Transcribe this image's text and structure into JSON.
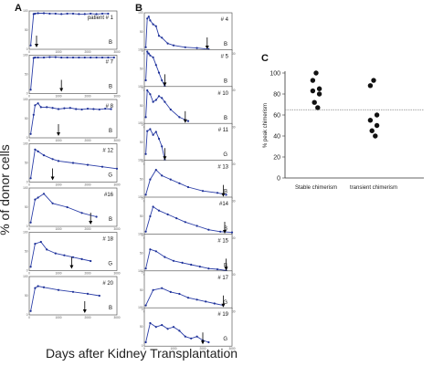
{
  "figure": {
    "panel_labels": [
      "A",
      "B",
      "C"
    ],
    "ylabel": "% of donor cells",
    "xlabel": "Days after Kidney Transplantation"
  },
  "chart_data": [
    {
      "type": "line",
      "panel": "A",
      "subplots": [
        {
          "id": "patient # 1",
          "tag": "B",
          "x": [
            50,
            150,
            200,
            300,
            500,
            700,
            900,
            1100,
            1300,
            1500,
            1700,
            1900,
            2100,
            2300,
            2500,
            2700
          ],
          "y": [
            10,
            92,
            93,
            94,
            94,
            93,
            93,
            92,
            93,
            93,
            92,
            92,
            93,
            92,
            93,
            93
          ],
          "arrow_x": 250
        },
        {
          "id": "# 7",
          "tag": "B",
          "x": [
            50,
            150,
            200,
            300,
            500,
            700,
            900,
            1100,
            1300,
            1500,
            1700,
            1900,
            2100,
            2300,
            2500,
            2700,
            2900
          ],
          "y": [
            10,
            93,
            94,
            94,
            94,
            95,
            95,
            94,
            94,
            94,
            94,
            94,
            94,
            94,
            94,
            94,
            94
          ],
          "arrow_x": 1100
        },
        {
          "id": "# 8",
          "tag": "B",
          "x": [
            50,
            150,
            200,
            300,
            400,
            600,
            800,
            1000,
            1200,
            1400,
            1600,
            1800,
            2000,
            2200,
            2400,
            2600,
            2800
          ],
          "y": [
            10,
            60,
            85,
            90,
            80,
            80,
            78,
            75,
            77,
            78,
            75,
            74,
            76,
            75,
            74,
            76,
            75
          ],
          "arrow_x": 1000
        },
        {
          "id": "# 12",
          "tag": "G",
          "x": [
            50,
            200,
            300,
            500,
            800,
            1000,
            1500,
            2000,
            2500,
            3000
          ],
          "y": [
            10,
            85,
            80,
            70,
            60,
            55,
            50,
            45,
            40,
            35
          ],
          "arrow_x": 800
        },
        {
          "id": "#16",
          "tag": "B",
          "x": [
            50,
            200,
            300,
            500,
            800,
            1300,
            1800,
            2300
          ],
          "y": [
            10,
            70,
            75,
            85,
            60,
            50,
            35,
            25
          ],
          "arrow_x": 2100
        },
        {
          "id": "# 18",
          "tag": "G",
          "x": [
            50,
            200,
            400,
            600,
            900,
            1200,
            1500,
            1800,
            2100
          ],
          "y": [
            10,
            70,
            75,
            55,
            45,
            40,
            35,
            30,
            25
          ],
          "arrow_x": 1450
        },
        {
          "id": "# 20",
          "tag": "B",
          "x": [
            50,
            200,
            300,
            500,
            1000,
            1500,
            2000,
            2400
          ],
          "y": [
            10,
            70,
            75,
            72,
            65,
            60,
            55,
            50
          ],
          "arrow_x": 1900
        }
      ]
    },
    {
      "type": "line",
      "panel": "B",
      "subplots": [
        {
          "id": "# 4",
          "tag": "B",
          "x": [
            50,
            100,
            150,
            200,
            300,
            400,
            500,
            600,
            800,
            1000,
            1400,
            1800,
            2200
          ],
          "y": [
            10,
            85,
            90,
            80,
            70,
            65,
            40,
            35,
            20,
            15,
            10,
            8,
            5
          ],
          "arrow_x": 2150
        },
        {
          "id": "# 5",
          "tag": "B",
          "x": [
            50,
            100,
            150,
            200,
            300,
            400,
            500,
            600,
            700
          ],
          "y": [
            20,
            95,
            90,
            85,
            80,
            60,
            40,
            20,
            5
          ],
          "arrow_x": 700
        },
        {
          "id": "# 10",
          "tag": "B",
          "x": [
            50,
            100,
            200,
            300,
            400,
            500,
            600,
            700,
            900,
            1200,
            1500
          ],
          "y": [
            20,
            90,
            80,
            60,
            65,
            75,
            70,
            60,
            40,
            20,
            10
          ],
          "arrow_x": 1400
        },
        {
          "id": "# 11",
          "tag": "G",
          "x": [
            50,
            100,
            200,
            300,
            400,
            500,
            600,
            700
          ],
          "y": [
            20,
            80,
            85,
            70,
            78,
            60,
            40,
            5
          ],
          "arrow_x": 700
        },
        {
          "id": "# 13",
          "tag": "B",
          "x": [
            50,
            200,
            400,
            600,
            900,
            1200,
            1500,
            2000,
            2500,
            2800
          ],
          "y": [
            10,
            50,
            75,
            60,
            50,
            40,
            30,
            20,
            15,
            10
          ],
          "arrow_x": 2700
        },
        {
          "id": "#14",
          "tag": "B",
          "x": [
            50,
            200,
            300,
            500,
            800,
            1100,
            1400,
            1800,
            2200,
            2600,
            3000
          ],
          "y": [
            10,
            50,
            75,
            65,
            55,
            45,
            35,
            25,
            15,
            10,
            8
          ],
          "arrow_x": 2750
        },
        {
          "id": "# 15",
          "tag": "B",
          "x": [
            50,
            200,
            400,
            700,
            1000,
            1300,
            1600,
            1900,
            2200,
            2500,
            2800
          ],
          "y": [
            10,
            60,
            55,
            40,
            30,
            25,
            20,
            15,
            10,
            8,
            5
          ],
          "arrow_x": 2800
        },
        {
          "id": "# 17",
          "tag": "G",
          "x": [
            50,
            300,
            600,
            900,
            1200,
            1500,
            1800,
            2100,
            2400,
            2700
          ],
          "y": [
            10,
            50,
            55,
            45,
            40,
            30,
            25,
            20,
            15,
            10
          ],
          "arrow_x": 2700
        },
        {
          "id": "# 19",
          "tag": "G",
          "x": [
            50,
            200,
            400,
            600,
            800,
            1000,
            1200,
            1400,
            1600,
            1800,
            2000,
            2200
          ],
          "y": [
            10,
            60,
            50,
            55,
            45,
            50,
            40,
            25,
            20,
            25,
            15,
            10
          ],
          "arrow_x": 2000
        }
      ]
    },
    {
      "type": "scatter",
      "panel": "C",
      "ylabel": "% peak chimerism",
      "categories": [
        "Stable chimerism",
        "transient chimerism"
      ],
      "ylim": [
        0,
        100
      ],
      "yticks": [
        0,
        20,
        40,
        60,
        80,
        100
      ],
      "threshold": 65,
      "series": [
        {
          "name": "Stable chimerism",
          "values": [
            100,
            93,
            85,
            83,
            80,
            72,
            67
          ]
        },
        {
          "name": "transient chimerism",
          "values": [
            93,
            88,
            60,
            55,
            50,
            45,
            40
          ]
        }
      ]
    }
  ],
  "colors": {
    "line": "#2b3ea8",
    "marker": "#1c2f96",
    "axis": "#333333",
    "frame": "#444444",
    "threshold": "#888888",
    "dot": "#111111"
  }
}
